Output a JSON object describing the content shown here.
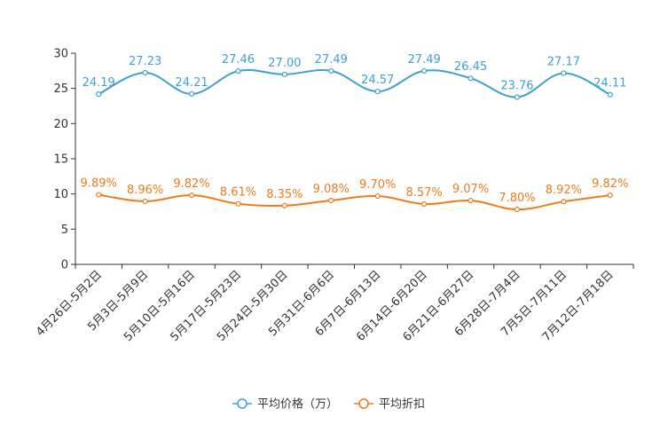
{
  "chart_data": {
    "type": "line",
    "title": "",
    "xlabel": "",
    "ylabel": "",
    "ylim": [
      0,
      30
    ],
    "yticks": [
      0,
      5,
      10,
      15,
      20,
      25,
      30
    ],
    "grid": false,
    "legend_position": "bottom-center",
    "categories": [
      "4月26日-5月2日",
      "5月3日-5月9日",
      "5月10日-5月16日",
      "5月17日-5月23日",
      "5月24日-5月30日",
      "5月31日-6月6日",
      "6月7日-6月13日",
      "6月14日-6月20日",
      "6月21日-6月27日",
      "6月28日-7月4日",
      "7月5日-7月11日",
      "7月12日-7月18日"
    ],
    "series": [
      {
        "name": "平均价格（万）",
        "color": "#3fa0d2",
        "values": [
          24.19,
          27.23,
          24.21,
          27.46,
          27.0,
          27.49,
          24.57,
          27.49,
          26.45,
          23.76,
          27.17,
          24.11
        ],
        "labels": [
          "24.19",
          "27.23",
          "24.21",
          "27.46",
          "27.00",
          "27.49",
          "24.57",
          "27.49",
          "26.45",
          "23.76",
          "27.17",
          "24.11"
        ]
      },
      {
        "name": "平均折扣",
        "color": "#f07b1c",
        "values": [
          9.89,
          8.96,
          9.82,
          8.61,
          8.35,
          9.08,
          9.7,
          8.57,
          9.07,
          7.8,
          8.92,
          9.82
        ],
        "labels": [
          "9.89%",
          "8.96%",
          "9.82%",
          "8.61%",
          "8.35%",
          "9.08%",
          "9.70%",
          "8.57%",
          "9.07%",
          "7.80%",
          "8.92%",
          "9.82%"
        ]
      }
    ]
  }
}
